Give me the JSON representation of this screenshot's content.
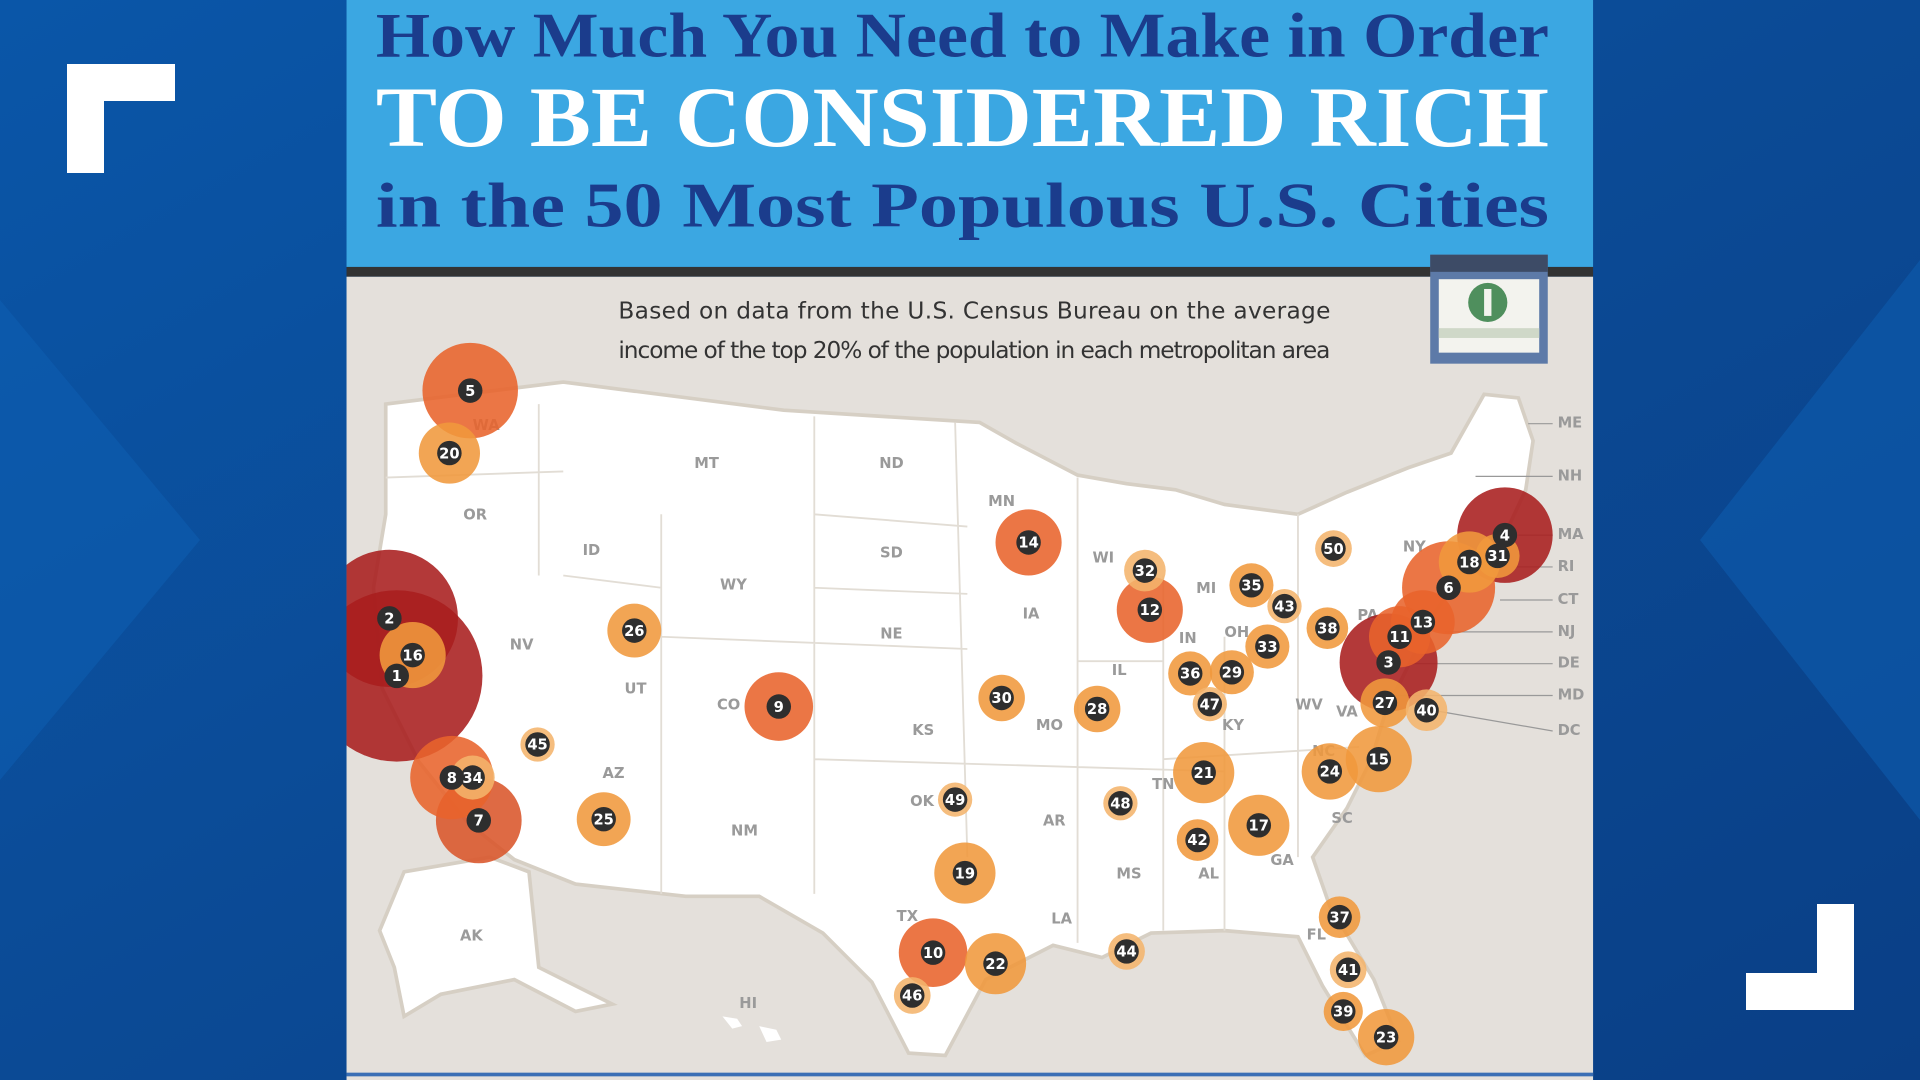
{
  "header": {
    "title_line1": "How Much You Need to Make in Order",
    "title_line2": "TO BE CONSIDERED RICH",
    "title_line3": "in the 50 Most Populous U.S. Cities",
    "subtitle_line1": "Based on data from the U.S. Census Bureau on the average",
    "subtitle_line2": "income of the top 20% of the population in each metropolitan area"
  },
  "states": [
    "WA",
    "OR",
    "ID",
    "MT",
    "ND",
    "MN",
    "WI",
    "MI",
    "NY",
    "PA",
    "NV",
    "UT",
    "WY",
    "SD",
    "NE",
    "IA",
    "IL",
    "IN",
    "OH",
    "CO",
    "KS",
    "MO",
    "KY",
    "WV",
    "VA",
    "AZ",
    "NM",
    "OK",
    "AR",
    "TN",
    "NC",
    "SC",
    "MS",
    "AL",
    "GA",
    "TX",
    "LA",
    "FL",
    "AK",
    "HI"
  ],
  "side_states": [
    "ME",
    "NH",
    "MA",
    "RI",
    "CT",
    "NJ",
    "DE",
    "MD",
    "DC"
  ],
  "markers": [
    1,
    2,
    3,
    4,
    5,
    6,
    7,
    8,
    9,
    10,
    11,
    12,
    13,
    14,
    15,
    16,
    17,
    18,
    19,
    20,
    21,
    22,
    23,
    24,
    25,
    26,
    27,
    28,
    29,
    30,
    31,
    32,
    33,
    34,
    35,
    36,
    37,
    38,
    39,
    40,
    41,
    42,
    43,
    44,
    45,
    46,
    47,
    48,
    49,
    50
  ]
}
